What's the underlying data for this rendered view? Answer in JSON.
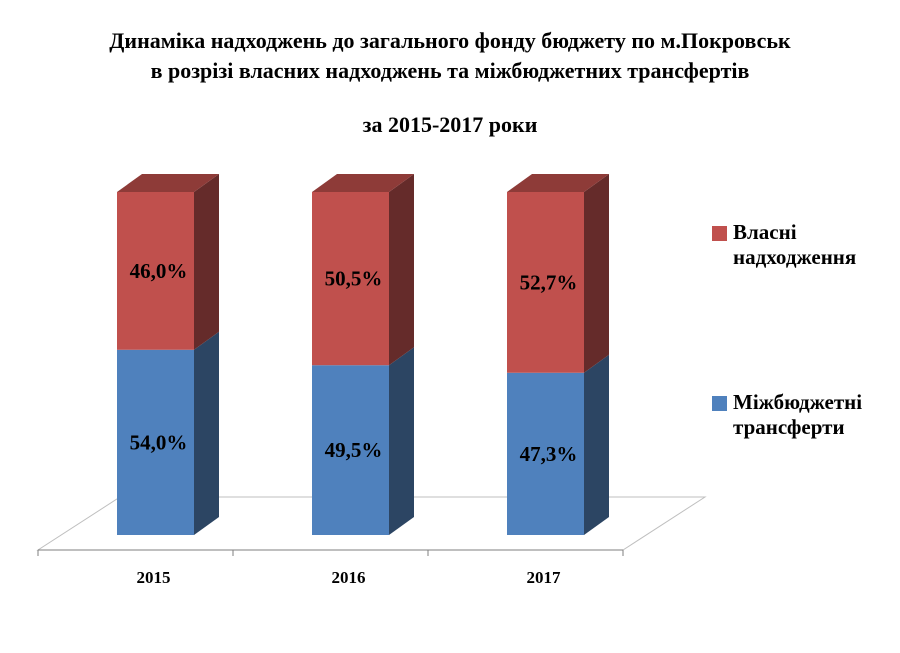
{
  "chart_data": {
    "type": "bar",
    "stacked": true,
    "style": "3d",
    "title": "Динаміка надходжень до загального фонду бюджету по м.Покровськ",
    "title_line2": "в розрізі власних надходжень та міжбюджетних трансфертів",
    "subtitle": "за 2015-2017 роки",
    "categories": [
      "2015",
      "2016",
      "2017"
    ],
    "series": [
      {
        "name": "Міжбюджетні трансферти",
        "values": [
          54.0,
          49.5,
          47.3
        ],
        "labels": [
          "54,0%",
          "49,5%",
          "47,3%"
        ],
        "color": "#4F81BD",
        "side_color": "#2C4563"
      },
      {
        "name": "Власні надходження",
        "values": [
          46.0,
          50.5,
          52.7
        ],
        "labels": [
          "46,0%",
          "50,5%",
          "52,7%"
        ],
        "color": "#C0504D",
        "side_color": "#652B2A"
      }
    ],
    "ylim": [
      0,
      100
    ],
    "unit": "%",
    "legend_position": "right",
    "grid": false
  },
  "legend": [
    {
      "line1": "Власні",
      "line2": "надходження",
      "color": "#C0504D"
    },
    {
      "line1": "Міжбюджетні",
      "line2": "трансферти",
      "color": "#4F81BD"
    }
  ]
}
